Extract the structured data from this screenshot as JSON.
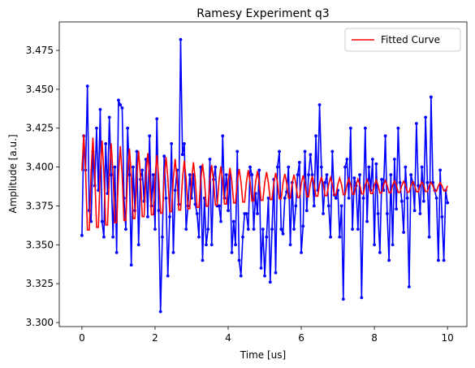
{
  "chart_data": {
    "type": "line",
    "title": "Ramesy Experiment q3",
    "x_label": "Time [us]",
    "y_label": "Amplitude [a.u.]",
    "x": [
      0,
      0.05,
      0.1,
      0.15,
      0.2,
      0.25,
      0.3,
      0.35,
      0.4,
      0.45,
      0.5,
      0.55,
      0.6,
      0.65,
      0.7,
      0.75,
      0.8,
      0.85,
      0.9,
      0.95,
      1,
      1.05,
      1.1,
      1.15,
      1.2,
      1.25,
      1.3,
      1.35,
      1.4,
      1.45,
      1.5,
      1.55,
      1.6,
      1.65,
      1.7,
      1.75,
      1.8,
      1.85,
      1.9,
      1.95,
      2,
      2.05,
      2.1,
      2.15,
      2.2,
      2.25,
      2.3,
      2.35,
      2.4,
      2.45,
      2.5,
      2.55,
      2.6,
      2.65,
      2.7,
      2.75,
      2.8,
      2.85,
      2.9,
      2.95,
      3,
      3.05,
      3.1,
      3.15,
      3.2,
      3.25,
      3.3,
      3.35,
      3.4,
      3.45,
      3.5,
      3.55,
      3.6,
      3.65,
      3.7,
      3.75,
      3.8,
      3.85,
      3.9,
      3.95,
      4,
      4.05,
      4.1,
      4.15,
      4.2,
      4.25,
      4.3,
      4.35,
      4.4,
      4.45,
      4.5,
      4.55,
      4.6,
      4.65,
      4.7,
      4.75,
      4.8,
      4.85,
      4.9,
      4.95,
      5,
      5.05,
      5.1,
      5.15,
      5.2,
      5.25,
      5.3,
      5.35,
      5.4,
      5.45,
      5.5,
      5.55,
      5.6,
      5.65,
      5.7,
      5.75,
      5.8,
      5.85,
      5.9,
      5.95,
      6,
      6.05,
      6.1,
      6.15,
      6.2,
      6.25,
      6.3,
      6.35,
      6.4,
      6.45,
      6.5,
      6.55,
      6.6,
      6.65,
      6.7,
      6.75,
      6.8,
      6.85,
      6.9,
      6.95,
      7,
      7.05,
      7.1,
      7.15,
      7.2,
      7.25,
      7.3,
      7.35,
      7.4,
      7.45,
      7.5,
      7.55,
      7.6,
      7.65,
      7.7,
      7.75,
      7.8,
      7.85,
      7.9,
      7.95,
      8,
      8.05,
      8.1,
      8.15,
      8.2,
      8.25,
      8.3,
      8.35,
      8.4,
      8.45,
      8.5,
      8.55,
      8.6,
      8.65,
      8.7,
      8.75,
      8.8,
      8.85,
      8.9,
      8.95,
      9,
      9.05,
      9.1,
      9.15,
      9.2,
      9.25,
      9.3,
      9.35,
      9.4,
      9.45,
      9.5,
      9.55,
      9.6,
      9.65,
      9.7,
      9.75,
      9.8,
      9.85,
      9.9,
      9.95,
      10
    ],
    "series": [
      {
        "color": "#0000ff",
        "marker": true,
        "values": [
          3.356,
          3.42,
          3.398,
          3.452,
          3.372,
          3.365,
          3.41,
          3.388,
          3.425,
          3.385,
          3.437,
          3.365,
          3.355,
          3.415,
          3.383,
          3.432,
          3.395,
          3.355,
          3.4,
          3.345,
          3.443,
          3.44,
          3.438,
          3.38,
          3.36,
          3.425,
          3.395,
          3.337,
          3.4,
          3.372,
          3.41,
          3.35,
          3.392,
          3.398,
          3.378,
          3.405,
          3.368,
          3.42,
          3.375,
          3.395,
          3.36,
          3.431,
          3.372,
          3.307,
          3.355,
          3.407,
          3.38,
          3.33,
          3.368,
          3.415,
          3.345,
          3.385,
          3.398,
          3.376,
          3.482,
          3.408,
          3.415,
          3.36,
          3.375,
          3.395,
          3.38,
          3.395,
          3.376,
          3.37,
          3.355,
          3.4,
          3.34,
          3.38,
          3.35,
          3.36,
          3.405,
          3.35,
          3.392,
          3.4,
          3.375,
          3.375,
          3.365,
          3.42,
          3.38,
          3.395,
          3.372,
          3.395,
          3.345,
          3.365,
          3.35,
          3.41,
          3.34,
          3.33,
          3.355,
          3.37,
          3.37,
          3.36,
          3.4,
          3.395,
          3.36,
          3.383,
          3.37,
          3.398,
          3.335,
          3.36,
          3.33,
          3.355,
          3.38,
          3.326,
          3.36,
          3.392,
          3.332,
          3.4,
          3.41,
          3.36,
          3.357,
          3.38,
          3.384,
          3.4,
          3.35,
          3.39,
          3.36,
          3.375,
          3.395,
          3.403,
          3.345,
          3.362,
          3.41,
          3.372,
          3.395,
          3.408,
          3.395,
          3.375,
          3.42,
          3.385,
          3.44,
          3.4,
          3.37,
          3.39,
          3.395,
          3.375,
          3.355,
          3.41,
          3.382,
          3.38,
          3.385,
          3.355,
          3.375,
          3.315,
          3.4,
          3.405,
          3.38,
          3.425,
          3.36,
          3.393,
          3.388,
          3.36,
          3.395,
          3.316,
          3.38,
          3.425,
          3.365,
          3.4,
          3.385,
          3.405,
          3.35,
          3.402,
          3.37,
          3.345,
          3.392,
          3.385,
          3.42,
          3.37,
          3.34,
          3.395,
          3.35,
          3.405,
          3.373,
          3.425,
          3.39,
          3.378,
          3.358,
          3.4,
          3.38,
          3.323,
          3.395,
          3.39,
          3.372,
          3.428,
          3.388,
          3.37,
          3.4,
          3.378,
          3.432,
          3.39,
          3.355,
          3.445,
          3.39,
          3.385,
          3.38,
          3.34,
          3.398,
          3.368,
          3.34,
          3.385,
          3.377
        ]
      },
      {
        "name": "Fitted Curve",
        "color": "#ff0000",
        "marker": false,
        "values": [
          3.3975,
          3.421,
          3.3975,
          3.3595,
          3.3595,
          3.3969,
          3.4189,
          3.3969,
          3.3612,
          3.3612,
          3.3963,
          3.417,
          3.3963,
          3.3627,
          3.3627,
          3.3957,
          3.4152,
          3.3957,
          3.3642,
          3.3642,
          3.3952,
          3.4135,
          3.3952,
          3.3656,
          3.3656,
          3.3947,
          3.4119,
          3.3947,
          3.3669,
          3.3669,
          3.3942,
          3.4104,
          3.3942,
          3.3681,
          3.3681,
          3.3938,
          3.4089,
          3.3938,
          3.3693,
          3.3693,
          3.3934,
          3.4076,
          3.3934,
          3.3703,
          3.3703,
          3.393,
          3.4064,
          3.393,
          3.3713,
          3.3713,
          3.3926,
          3.4052,
          3.3926,
          3.3723,
          3.3723,
          3.3923,
          3.4041,
          3.3923,
          3.3732,
          3.3732,
          3.392,
          3.4031,
          3.392,
          3.374,
          3.374,
          3.3917,
          3.4021,
          3.3917,
          3.3748,
          3.3748,
          3.3914,
          3.4012,
          3.3914,
          3.3755,
          3.3755,
          3.3911,
          3.4003,
          3.3911,
          3.3762,
          3.3762,
          3.3909,
          3.3995,
          3.3909,
          3.3769,
          3.3769,
          3.3906,
          3.3988,
          3.3906,
          3.3775,
          3.3775,
          3.3904,
          3.398,
          3.3904,
          3.3781,
          3.3781,
          3.3902,
          3.3974,
          3.3902,
          3.3786,
          3.3786,
          3.39,
          3.3968,
          3.39,
          3.3791,
          3.3791,
          3.3898,
          3.3962,
          3.3898,
          3.3796,
          3.3796,
          3.3897,
          3.3956,
          3.3897,
          3.38,
          3.38,
          3.3895,
          3.3951,
          3.3895,
          3.3804,
          3.3804,
          3.3893,
          3.3946,
          3.3893,
          3.3809,
          3.3809,
          3.3892,
          3.3941,
          3.3892,
          3.3813,
          3.3813,
          3.3891,
          3.3937,
          3.3891,
          3.3816,
          3.3816,
          3.3889,
          3.3933,
          3.3889,
          3.3819,
          3.3819,
          3.3888,
          3.3929,
          3.3888,
          3.3822,
          3.3822,
          3.3887,
          3.3926,
          3.3887,
          3.3825,
          3.3825,
          3.3886,
          3.3922,
          3.3886,
          3.3828,
          3.3828,
          3.3885,
          3.3919,
          3.3885,
          3.383,
          3.383,
          3.3884,
          3.3916,
          3.3884,
          3.3833,
          3.3833,
          3.3883,
          3.3913,
          3.3883,
          3.3835,
          3.3835,
          3.3883,
          3.3911,
          3.3883,
          3.3837,
          3.3837,
          3.3882,
          3.3908,
          3.3882,
          3.3839,
          3.3839,
          3.3881,
          3.3906,
          3.3881,
          3.3841,
          3.3841,
          3.3881,
          3.3904,
          3.3881,
          3.3842,
          3.3842,
          3.388,
          3.3902,
          3.388,
          3.3844,
          3.3844,
          3.3879,
          3.39,
          3.3879,
          3.3846,
          3.3846,
          3.3879
        ]
      }
    ],
    "xlim": [
      -0.62,
      10.53
    ],
    "xticks": [
      0,
      2,
      4,
      6,
      8,
      10
    ],
    "ylim": [
      3.2974,
      3.4933
    ],
    "yticks": [
      {
        "value": 3.3,
        "label": "3.300"
      },
      {
        "value": 3.325,
        "label": "3.325"
      },
      {
        "value": 3.35,
        "label": "3.350"
      },
      {
        "value": 3.375,
        "label": "3.375"
      },
      {
        "value": 3.4,
        "label": "3.400"
      },
      {
        "value": 3.425,
        "label": "3.425"
      },
      {
        "value": 3.45,
        "label": "3.450"
      },
      {
        "value": 3.475,
        "label": "3.475"
      }
    ],
    "grid": false,
    "legend": "upper right"
  }
}
